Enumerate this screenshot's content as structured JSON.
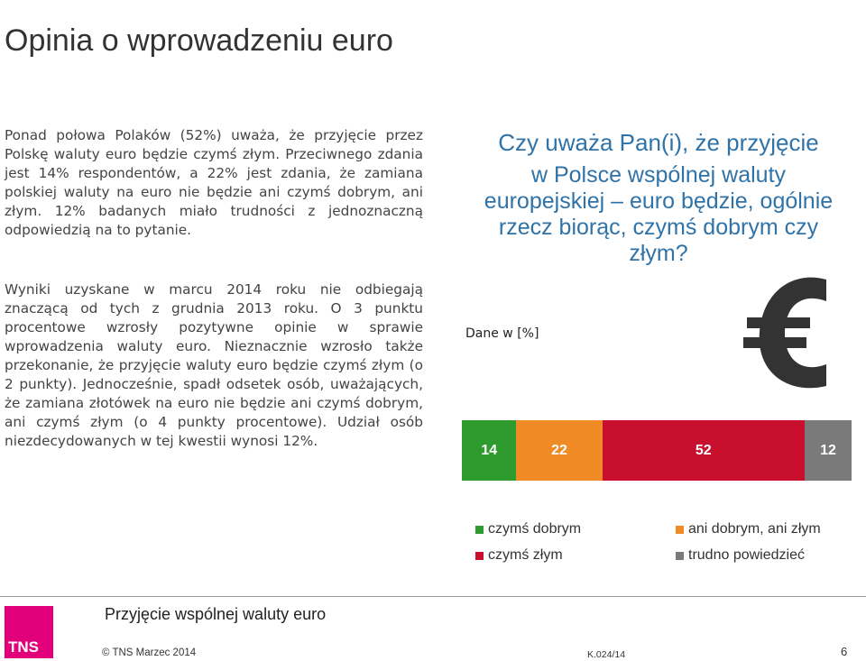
{
  "slide": {
    "title": "Opinia o wprowadzeniu euro",
    "paragraph1": "Ponad połowa Polaków (52%) uważa, że przyjęcie przez Polskę waluty euro będzie czymś złym. Przeciwnego zdania jest 14% respondentów, a 22% jest zdania, że zamiana polskiej waluty na euro nie będzie ani czymś dobrym, ani złym. 12% badanych miało trudności z jednoznaczną odpowiedzią na to pytanie.",
    "paragraph2": "Wyniki uzyskane w marcu 2014 roku nie odbiegają znaczącą od tych z grudnia 2013 roku. O 3 punktu procentowe wzrosły pozytywne opinie w sprawie wprowadzenia waluty euro. Nieznacznie wzrosło także przekonanie, że przyjęcie waluty euro będzie czymś złym (o 2 punkty). Jednocześnie, spadł odsetek osób, uważających, że zamiana złotówek na euro nie będzie ani czymś dobrym, ani czymś złym (o 4 punkty procentowe). Udział osób niezdecydowanych w tej kwestii wynosi 12%.",
    "question_line1": "Czy uważa Pan(i), że przyjęcie",
    "question_rest": "w Polsce wspólnej waluty europejskiej – euro będzie, ogólnie rzecz biorąc, czymś dobrym czy złym?",
    "units_label": "Dane w [%]",
    "euro_icon": "euro-icon"
  },
  "chart_data": {
    "type": "bar",
    "orientation": "horizontal-stacked",
    "categories": [
      ""
    ],
    "series": [
      {
        "name": "czymś dobrym",
        "values": [
          14
        ],
        "label": "14",
        "color": "#2e9b2e"
      },
      {
        "name": "ani dobrym, ani złym",
        "values": [
          22
        ],
        "label": "22",
        "color": "#f08a24"
      },
      {
        "name": "czymś złym",
        "values": [
          52
        ],
        "label": "52",
        "color": "#c8102e"
      },
      {
        "name": "trudno powiedzieć",
        "values": [
          12
        ],
        "label": "12",
        "color": "#7a7a7a"
      }
    ],
    "xlim": [
      0,
      100
    ],
    "legend_position": "bottom"
  },
  "footer": {
    "title": "Przyjęcie wspólnej waluty euro",
    "copyright": "© TNS Marzec 2014",
    "code": "K.024/14",
    "page": "6",
    "logo_text": "TNS",
    "logo_color": "#e2007a"
  }
}
